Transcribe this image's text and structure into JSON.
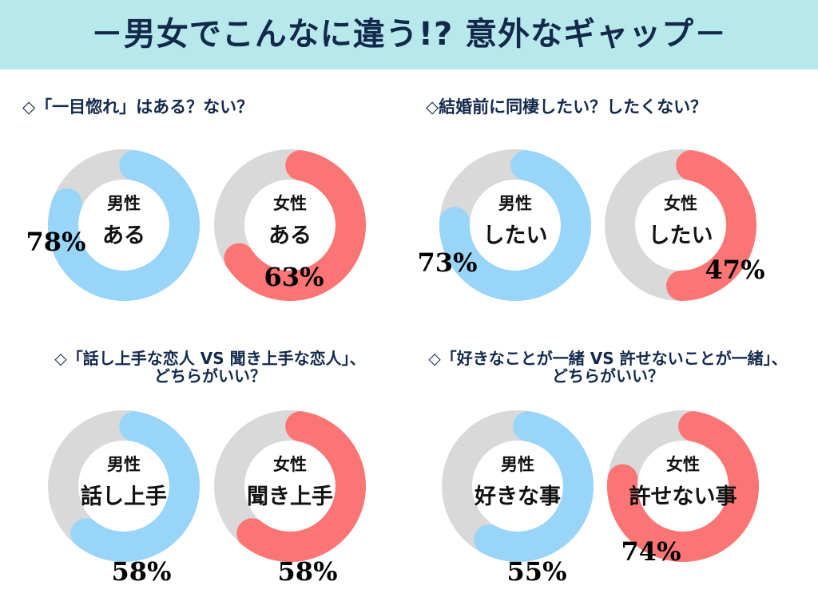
{
  "header": {
    "title": "－男女でこんなに違う!? 意外なギャップ－"
  },
  "colors": {
    "male": "#99d5f8",
    "female": "#fc7575",
    "rest": "#d9d9d9",
    "header_bg": "#b7e8ec",
    "title": "#13294b"
  },
  "chart_data": [
    {
      "type": "pie",
      "title": "◇「一目惚れ」はある？ない？",
      "series": [
        {
          "name": "男性",
          "label": "ある",
          "value": 78,
          "value_label": "78%",
          "color_key": "male"
        },
        {
          "name": "女性",
          "label": "ある",
          "value": 63,
          "value_label": "63%",
          "color_key": "female"
        }
      ]
    },
    {
      "type": "pie",
      "title": "◇結婚前に同棲したい？したくない？",
      "series": [
        {
          "name": "男性",
          "label": "したい",
          "value": 73,
          "value_label": "73%",
          "color_key": "male"
        },
        {
          "name": "女性",
          "label": "したい",
          "value": 47,
          "value_label": "47%",
          "color_key": "female"
        }
      ]
    },
    {
      "type": "pie",
      "title_lines": [
        "◇「話し上手な恋人 VS 聞き上手な恋人」、",
        "どちらがいい？"
      ],
      "series": [
        {
          "name": "男性",
          "label": "話し上手",
          "value": 58,
          "value_label": "58%",
          "color_key": "male"
        },
        {
          "name": "女性",
          "label": "聞き上手",
          "value": 58,
          "value_label": "58%",
          "color_key": "female"
        }
      ]
    },
    {
      "type": "pie",
      "title_lines": [
        "◇「好きなことが一緒 VS 許せないことが一緒」、",
        "どちらがいい？"
      ],
      "series": [
        {
          "name": "男性",
          "label": "好きな事",
          "value": 55,
          "value_label": "55%",
          "color_key": "male"
        },
        {
          "name": "女性",
          "label": "許せない事",
          "value": 74,
          "value_label": "74%",
          "color_key": "female"
        }
      ]
    }
  ]
}
